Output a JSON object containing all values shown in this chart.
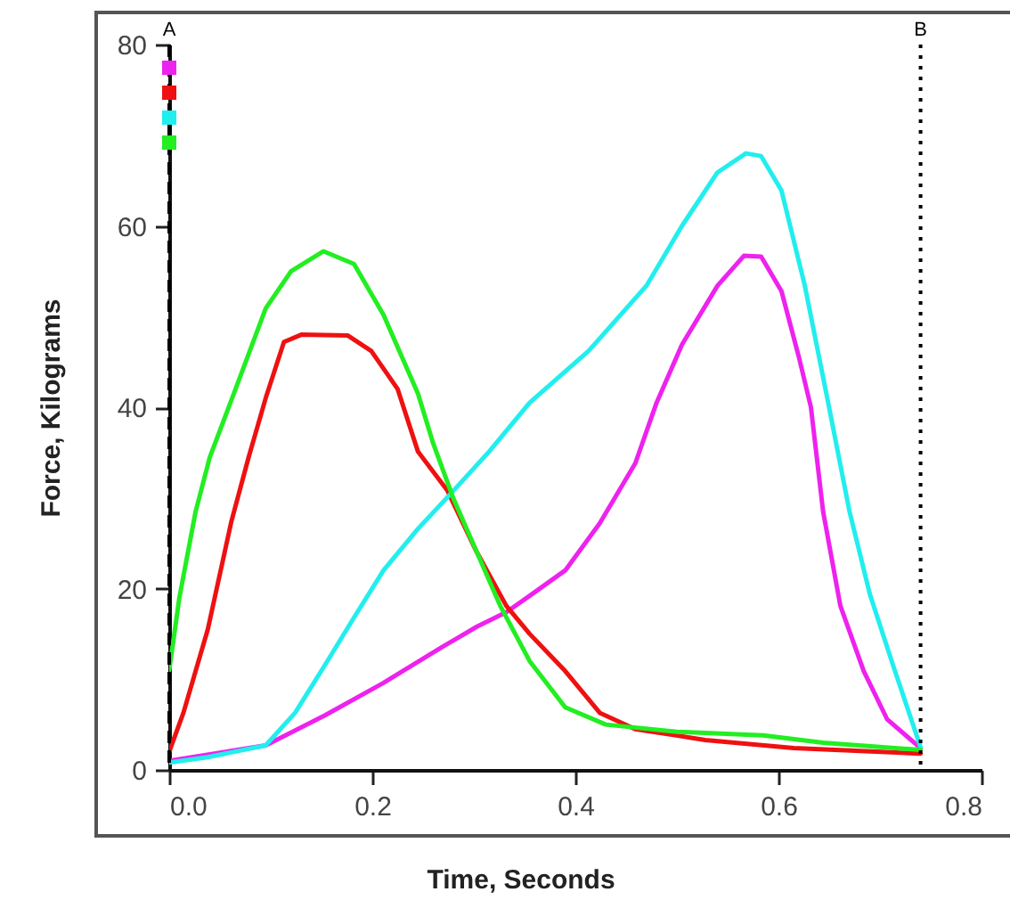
{
  "chart_data": {
    "type": "line",
    "xlabel": "Time, Seconds",
    "ylabel": "Force, Kilograms",
    "xlim": [
      0,
      0.8
    ],
    "xticks": [
      {
        "value": 0,
        "label": "0.0"
      },
      0.2,
      0.4,
      0.6,
      0.8
    ],
    "ylim": [
      0,
      80
    ],
    "yticks": [
      0,
      20,
      40,
      60,
      80
    ],
    "ref_lines": [
      {
        "axis": "x",
        "value": 0,
        "label": "A",
        "line_style": "dashed",
        "color": "#000000"
      },
      {
        "axis": "x",
        "value": 0.74,
        "label": "B",
        "line_style": "dotted",
        "color": "#000000"
      }
    ],
    "series": [
      {
        "color": "#ee22ee",
        "x": [
          0,
          0.095,
          0.153,
          0.211,
          0.268,
          0.303,
          0.332,
          0.355,
          0.39,
          0.424,
          0.459,
          0.48,
          0.505,
          0.54,
          0.566,
          0.583,
          0.603,
          0.62,
          0.632,
          0.644,
          0.661,
          0.684,
          0.707,
          0.74
        ],
        "values": [
          1,
          2.7,
          6,
          9.6,
          13.5,
          15.8,
          17.4,
          19.2,
          22,
          27.2,
          33.8,
          40.5,
          46.9,
          53.4,
          56.7,
          56.6,
          52.8,
          45.6,
          40,
          28.5,
          18.1,
          10.9,
          5.6,
          2.4
        ]
      },
      {
        "color": "#ee1111",
        "x": [
          0,
          0.014,
          0.038,
          0.061,
          0.078,
          0.095,
          0.113,
          0.13,
          0.176,
          0.199,
          0.225,
          0.245,
          0.274,
          0.303,
          0.332,
          0.355,
          0.39,
          0.424,
          0.459,
          0.528,
          0.615,
          0.74
        ],
        "values": [
          2,
          6.3,
          15.5,
          27.3,
          34.4,
          41,
          47.2,
          48,
          47.9,
          46.2,
          42,
          35.1,
          30.8,
          24,
          18.1,
          15,
          10.9,
          6.3,
          4.5,
          3.3,
          2.4,
          1.8
        ]
      },
      {
        "color": "#22eeee",
        "x": [
          0,
          0.038,
          0.095,
          0.124,
          0.153,
          0.182,
          0.211,
          0.245,
          0.28,
          0.315,
          0.355,
          0.413,
          0.47,
          0.505,
          0.54,
          0.568,
          0.583,
          0.603,
          0.626,
          0.649,
          0.67,
          0.69,
          0.713,
          0.74
        ],
        "values": [
          0.8,
          1.4,
          2.7,
          6.3,
          11.5,
          16.8,
          22,
          26.6,
          30.8,
          35.1,
          40.5,
          46.2,
          53.4,
          60,
          65.9,
          68,
          67.7,
          63.9,
          53.4,
          40.5,
          28.5,
          19.4,
          11.5,
          2.5
        ]
      },
      {
        "color": "#22ee22",
        "x": [
          0,
          0.01,
          0.026,
          0.04,
          0.064,
          0.095,
          0.12,
          0.152,
          0.182,
          0.211,
          0.245,
          0.26,
          0.28,
          0.303,
          0.326,
          0.355,
          0.39,
          0.43,
          0.5,
          0.585,
          0.644,
          0.74
        ],
        "values": [
          11,
          19,
          28.5,
          34.5,
          41.6,
          50.9,
          55,
          57.2,
          55.8,
          50.2,
          41.5,
          36,
          29.9,
          24,
          18.1,
          12,
          6.9,
          5,
          4.2,
          3.8,
          3,
          2.2
        ]
      }
    ]
  }
}
